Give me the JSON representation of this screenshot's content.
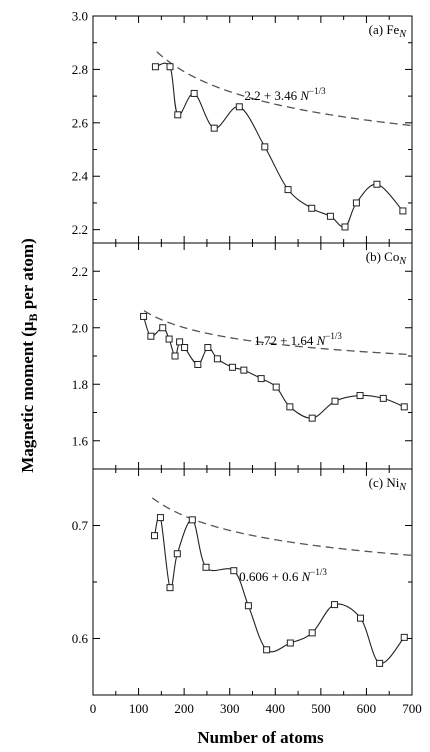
{
  "chart_data": {
    "type": "line",
    "xlabel": "Number of atoms",
    "ylabel_main": "Magnetic moment (μ",
    "ylabel_sub": "B",
    "ylabel_tail": " per atom)",
    "xlim": [
      0,
      700
    ],
    "xticks": [
      0,
      100,
      200,
      300,
      400,
      500,
      600,
      700
    ],
    "xtick_labels": [
      "0",
      "100",
      "200",
      "300",
      "400",
      "500",
      "600",
      "700"
    ],
    "grid": false,
    "panels": [
      {
        "id": "fe",
        "label_prefix": "(a) Fe",
        "label_sub": "N",
        "ylim": [
          2.15,
          3.0
        ],
        "yticks": [
          2.2,
          2.4,
          2.6,
          2.8,
          3.0
        ],
        "ytick_labels": [
          "2.2",
          "2.4",
          "2.6",
          "2.8",
          "3.0"
        ],
        "series": {
          "x": [
            137,
            169,
            186,
            222,
            266,
            321,
            377,
            428,
            480,
            521,
            553,
            578,
            623,
            680
          ],
          "y": [
            2.81,
            2.81,
            2.63,
            2.71,
            2.58,
            2.66,
            2.51,
            2.35,
            2.28,
            2.25,
            2.21,
            2.3,
            2.37,
            2.27
          ]
        },
        "fit": {
          "const": 2.2,
          "coef": 3.46,
          "x_range": [
            140,
            700
          ],
          "formula_main": "2.2 + 3.46 N",
          "formula_exp": "−1/3"
        }
      },
      {
        "id": "co",
        "label_prefix": "(b) Co",
        "label_sub": "N",
        "ylim": [
          1.5,
          2.3
        ],
        "yticks": [
          1.6,
          1.8,
          2.0,
          2.2
        ],
        "ytick_labels": [
          "1.6",
          "1.8",
          "2.0",
          "2.2"
        ],
        "series": {
          "x": [
            111,
            127,
            153,
            167,
            180,
            190,
            201,
            230,
            252,
            273,
            306,
            331,
            369,
            402,
            432,
            481,
            531,
            586,
            637,
            683
          ],
          "y": [
            2.04,
            1.97,
            2.0,
            1.96,
            1.9,
            1.95,
            1.93,
            1.87,
            1.93,
            1.89,
            1.86,
            1.85,
            1.82,
            1.79,
            1.72,
            1.68,
            1.74,
            1.76,
            1.75,
            1.72
          ]
        },
        "fit": {
          "const": 1.72,
          "coef": 1.64,
          "x_range": [
            112,
            700
          ],
          "formula_main": "1.72 + 1.64 N",
          "formula_exp": "−1/3"
        }
      },
      {
        "id": "ni",
        "label_prefix": "(c) Ni",
        "label_sub": "N",
        "ylim": [
          0.55,
          0.75
        ],
        "yticks": [
          0.6,
          0.7
        ],
        "ytick_labels": [
          "0.6",
          "0.7"
        ],
        "series": {
          "x": [
            135,
            148,
            169,
            185,
            218,
            248,
            309,
            341,
            381,
            433,
            481,
            530,
            587,
            629,
            683
          ],
          "y": [
            0.691,
            0.707,
            0.645,
            0.675,
            0.705,
            0.663,
            0.66,
            0.629,
            0.59,
            0.596,
            0.605,
            0.63,
            0.618,
            0.578,
            0.601
          ]
        },
        "fit": {
          "const": 0.606,
          "coef": 0.6,
          "x_range": [
            130,
            700
          ],
          "formula_main": "0.606 + 0.6 N",
          "formula_exp": "−1/3"
        }
      }
    ]
  }
}
